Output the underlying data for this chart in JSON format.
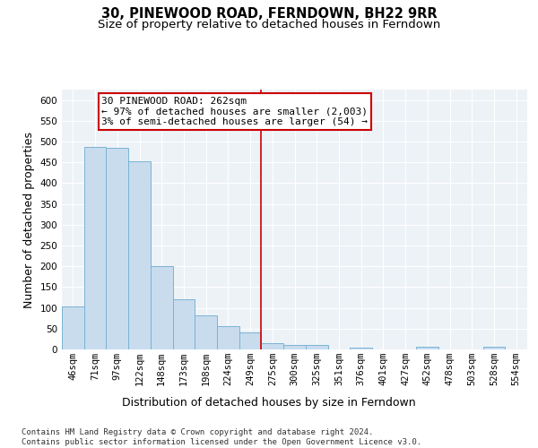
{
  "title": "30, PINEWOOD ROAD, FERNDOWN, BH22 9RR",
  "subtitle": "Size of property relative to detached houses in Ferndown",
  "xlabel": "Distribution of detached houses by size in Ferndown",
  "ylabel": "Number of detached properties",
  "bar_color": "#c8dcee",
  "bar_edge_color": "#7ab3d4",
  "categories": [
    "46sqm",
    "71sqm",
    "97sqm",
    "122sqm",
    "148sqm",
    "173sqm",
    "198sqm",
    "224sqm",
    "249sqm",
    "275sqm",
    "300sqm",
    "325sqm",
    "351sqm",
    "376sqm",
    "401sqm",
    "427sqm",
    "452sqm",
    "478sqm",
    "503sqm",
    "528sqm",
    "554sqm"
  ],
  "values": [
    104,
    487,
    484,
    452,
    201,
    120,
    82,
    55,
    40,
    15,
    10,
    10,
    1,
    5,
    0,
    0,
    7,
    0,
    0,
    7,
    0
  ],
  "ylim": [
    0,
    625
  ],
  "yticks": [
    0,
    50,
    100,
    150,
    200,
    250,
    300,
    350,
    400,
    450,
    500,
    550,
    600
  ],
  "annotation_text": "30 PINEWOOD ROAD: 262sqm\n← 97% of detached houses are smaller (2,003)\n3% of semi-detached houses are larger (54) →",
  "vline_color": "#cc0000",
  "annotation_box_color": "#cc0000",
  "footer_text": "Contains HM Land Registry data © Crown copyright and database right 2024.\nContains public sector information licensed under the Open Government Licence v3.0.",
  "background_color": "#edf2f7",
  "grid_color": "#ffffff",
  "title_fontsize": 10.5,
  "subtitle_fontsize": 9.5,
  "ylabel_fontsize": 9,
  "xlabel_fontsize": 9,
  "tick_fontsize": 7.5,
  "annotation_fontsize": 8,
  "footer_fontsize": 6.5
}
